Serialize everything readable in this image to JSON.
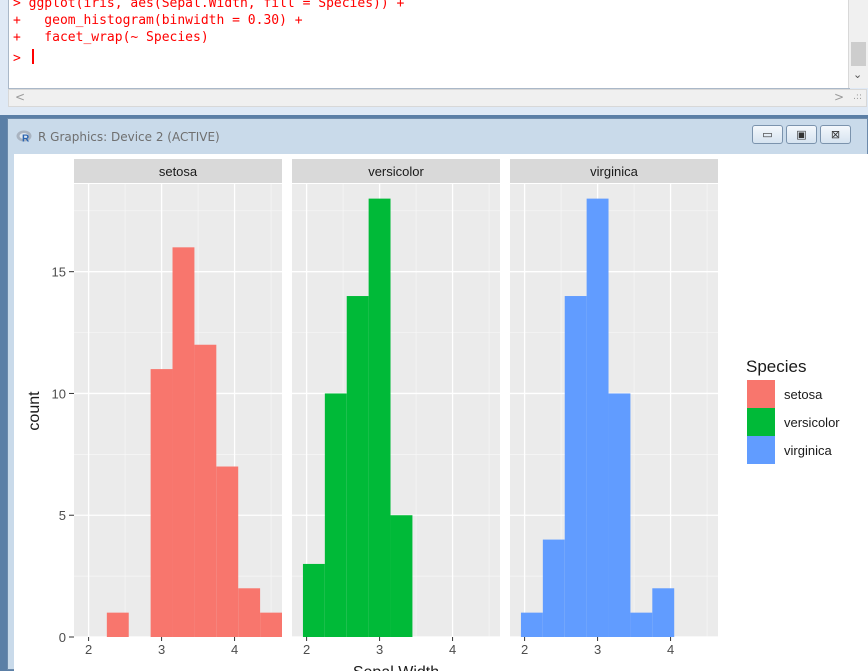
{
  "console": {
    "lines": [
      "> ggplot(iris, aes(Sepal.Width, fill = Species)) +",
      "+   geom_histogram(binwidth = 0.30) +",
      "+   facet_wrap(~ Species)",
      "> "
    ],
    "text_color": "#ff0000",
    "scroll_down": "⌄",
    "scroll_left": "<",
    "scroll_right": ">",
    "grip": ".::"
  },
  "window": {
    "title": "R Graphics: Device 2 (ACTIVE)",
    "minimize_label": "▭",
    "maximize_label": "▣",
    "close_label": "⊠"
  },
  "chart_data": {
    "type": "bar",
    "title": "",
    "xlabel": "Sepal.Width",
    "ylabel": "count",
    "x_ticks": [
      2,
      3,
      4
    ],
    "y_ticks": [
      0,
      5,
      10,
      15
    ],
    "xlim": [
      1.8,
      4.65
    ],
    "ylim": [
      0,
      18.6
    ],
    "binwidth": 0.3,
    "grid": true,
    "legend": {
      "title": "Species",
      "position": "right"
    },
    "facets": [
      {
        "name": "setosa",
        "color": "#F8766D",
        "bins": [
          {
            "x0": 2.25,
            "count": 1
          },
          {
            "x0": 2.55,
            "count": 0
          },
          {
            "x0": 2.85,
            "count": 11
          },
          {
            "x0": 3.15,
            "count": 16
          },
          {
            "x0": 3.45,
            "count": 12
          },
          {
            "x0": 3.75,
            "count": 7
          },
          {
            "x0": 4.05,
            "count": 2
          },
          {
            "x0": 4.35,
            "count": 1
          }
        ]
      },
      {
        "name": "versicolor",
        "color": "#00BA38",
        "bins": [
          {
            "x0": 1.95,
            "count": 3
          },
          {
            "x0": 2.25,
            "count": 10
          },
          {
            "x0": 2.55,
            "count": 14
          },
          {
            "x0": 2.85,
            "count": 18
          },
          {
            "x0": 3.15,
            "count": 5
          }
        ]
      },
      {
        "name": "virginica",
        "color": "#619CFF",
        "bins": [
          {
            "x0": 1.95,
            "count": 1
          },
          {
            "x0": 2.25,
            "count": 4
          },
          {
            "x0": 2.55,
            "count": 14
          },
          {
            "x0": 2.85,
            "count": 18
          },
          {
            "x0": 3.15,
            "count": 10
          },
          {
            "x0": 3.45,
            "count": 1
          },
          {
            "x0": 3.75,
            "count": 2
          }
        ]
      }
    ]
  }
}
